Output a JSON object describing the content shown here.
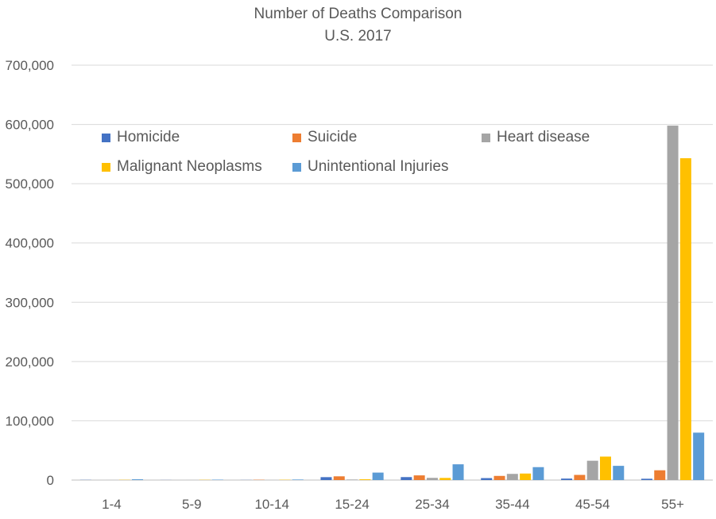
{
  "chart_data": {
    "type": "bar",
    "title": "Number of Deaths Comparison",
    "subtitle": "U.S. 2017",
    "xlabel": "",
    "ylabel": "",
    "categories": [
      "1-4",
      "5-9",
      "10-14",
      "15-24",
      "25-34",
      "35-44",
      "45-54",
      "55+"
    ],
    "ylim": [
      0,
      700000
    ],
    "yticks": [
      0,
      100000,
      200000,
      300000,
      400000,
      500000,
      600000,
      700000
    ],
    "ytick_labels": [
      "0",
      "100,000",
      "200,000",
      "300,000",
      "400,000",
      "500,000",
      "600,000",
      "700,000"
    ],
    "grid": true,
    "legend_position": "top-left",
    "series": [
      {
        "name": "Homicide",
        "color": "#4472C4",
        "values": [
          300,
          150,
          200,
          4900,
          5000,
          3300,
          2500,
          2200
        ]
      },
      {
        "name": "Suicide",
        "color": "#ED7D31",
        "values": [
          0,
          0,
          500,
          6300,
          7900,
          7000,
          8700,
          16500
        ]
      },
      {
        "name": "Heart disease",
        "color": "#A5A5A5",
        "values": [
          100,
          100,
          100,
          900,
          3700,
          10400,
          32600,
          598000
        ]
      },
      {
        "name": "Malignant Neoplasms",
        "color": "#FFC000",
        "values": [
          400,
          400,
          500,
          1300,
          3600,
          11000,
          39600,
          543000
        ]
      },
      {
        "name": "Unintentional Injuries",
        "color": "#5B9BD5",
        "values": [
          1300,
          700,
          900,
          12600,
          26600,
          21800,
          24000,
          80000
        ]
      }
    ]
  }
}
